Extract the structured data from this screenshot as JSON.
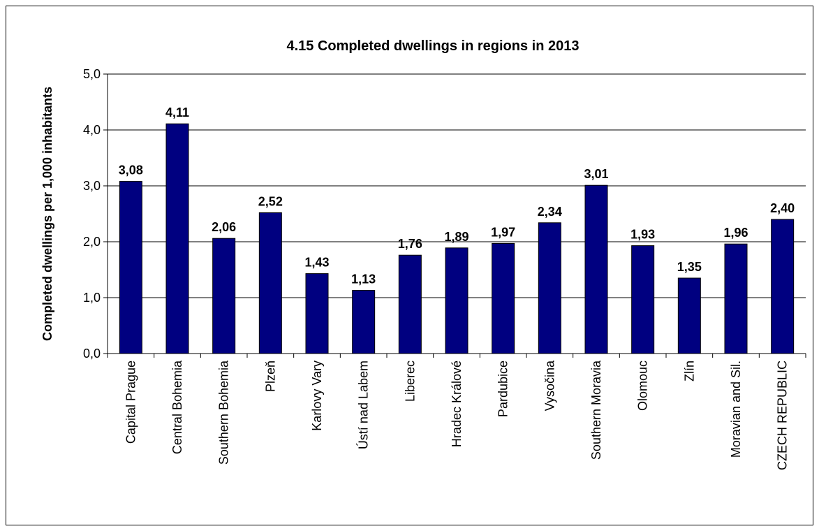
{
  "chart_data": {
    "type": "bar",
    "title": "4.15 Completed dwellings in regions in 2013",
    "ylabel": "Completed dwellings per 1,000 inhabitants",
    "xlabel": "",
    "ylim": [
      0,
      5
    ],
    "y_ticks": [
      "0,0",
      "1,0",
      "2,0",
      "3,0",
      "4,0",
      "5,0"
    ],
    "grid": true,
    "legend": "none",
    "bar_color": "#000080",
    "categories": [
      "Capital Prague",
      "Central Bohemia",
      "Southern Bohemia",
      "Plzeň",
      "Karlovy Vary",
      "Ústí nad Labem",
      "Liberec",
      "Hradec Králové",
      "Pardubice",
      "Vysočina",
      "Southern Moravia",
      "Olomouc",
      "Zlín",
      "Moravian and Sil.",
      "CZECH REPUBLIC"
    ],
    "values": [
      3.08,
      4.11,
      2.06,
      2.52,
      1.43,
      1.13,
      1.76,
      1.89,
      1.97,
      2.34,
      3.01,
      1.93,
      1.35,
      1.96,
      2.4
    ],
    "value_labels": [
      "3,08",
      "4,11",
      "2,06",
      "2,52",
      "1,43",
      "1,13",
      "1,76",
      "1,89",
      "1,97",
      "2,34",
      "3,01",
      "1,93",
      "1,35",
      "1,96",
      "2,40"
    ]
  }
}
